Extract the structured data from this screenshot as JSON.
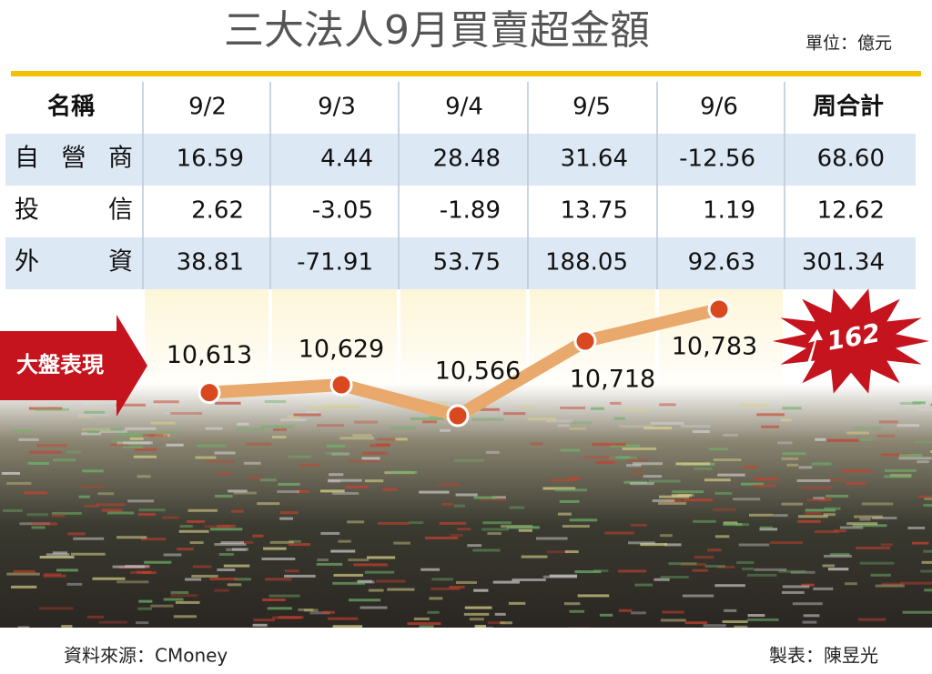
{
  "header": {
    "title": "三大法人9月買賣超金額",
    "unit": "單位：億元"
  },
  "table": {
    "columns": [
      "名稱",
      "9/2",
      "9/3",
      "9/4",
      "9/5",
      "9/6",
      "周合計"
    ],
    "rows": [
      [
        "自營商",
        "16.59",
        "4.44",
        "28.48",
        "31.64",
        "-12.56",
        "68.60"
      ],
      [
        "投信",
        "2.62",
        "-3.05",
        "-1.89",
        "13.75",
        "1.19",
        "12.62"
      ],
      [
        "外資",
        "38.81",
        "-71.91",
        "53.75",
        "188.05",
        "92.63",
        "301.34"
      ]
    ]
  },
  "chart_data": {
    "type": "line",
    "label": "大盤表現",
    "values": [
      10613,
      10629,
      10566,
      10718,
      10783
    ],
    "value_labels": [
      "10,613",
      "10,629",
      "10,566",
      "10,718",
      "10,783"
    ],
    "color": "#e9a86c",
    "marker_color": "#d9481f",
    "annotation": "162"
  },
  "footer": {
    "source": "資料來源：CMoney",
    "credit": "製表：陳昱光"
  }
}
